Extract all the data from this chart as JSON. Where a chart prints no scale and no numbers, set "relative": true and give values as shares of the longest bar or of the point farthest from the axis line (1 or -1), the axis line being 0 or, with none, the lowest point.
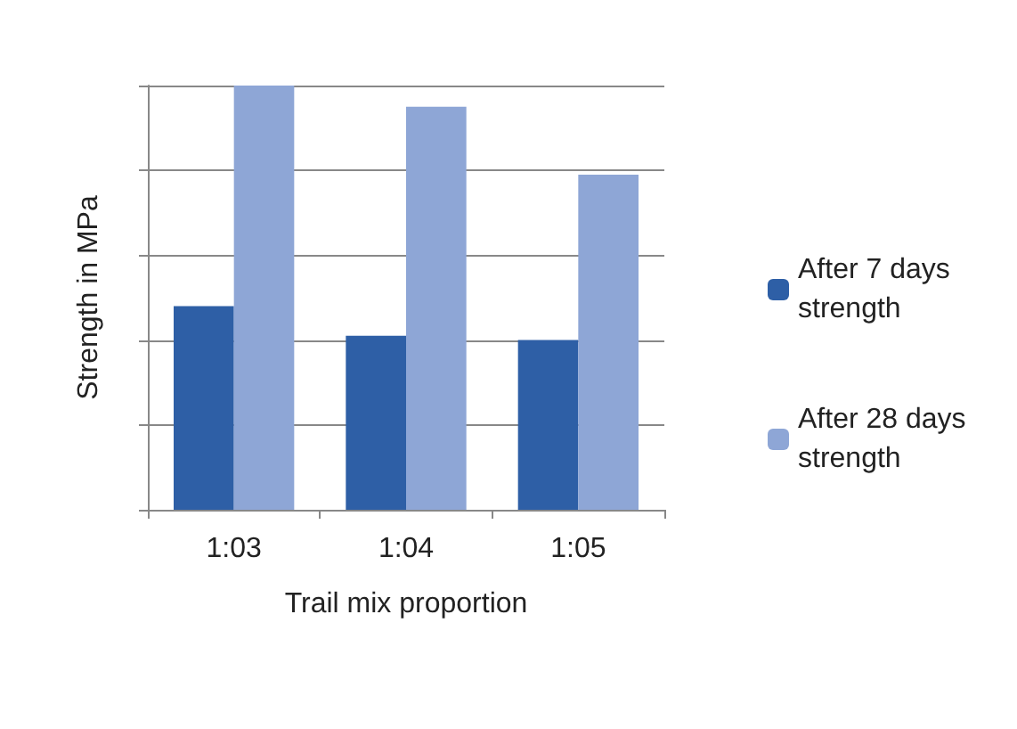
{
  "chart_data": {
    "type": "bar",
    "relative": true,
    "categories": [
      "1:03",
      "1:04",
      "1:05"
    ],
    "series": [
      {
        "name": "After 7 days strength",
        "color": "#2e5fa6",
        "values": [
          0.48,
          0.41,
          0.4
        ]
      },
      {
        "name": "After 28 days strength",
        "color": "#8ea6d6",
        "values": [
          1,
          0.95,
          0.79
        ]
      }
    ],
    "xlabel": "Trail mix proportion",
    "ylabel": "Strength in MPa",
    "grid": true,
    "legend": "right"
  }
}
